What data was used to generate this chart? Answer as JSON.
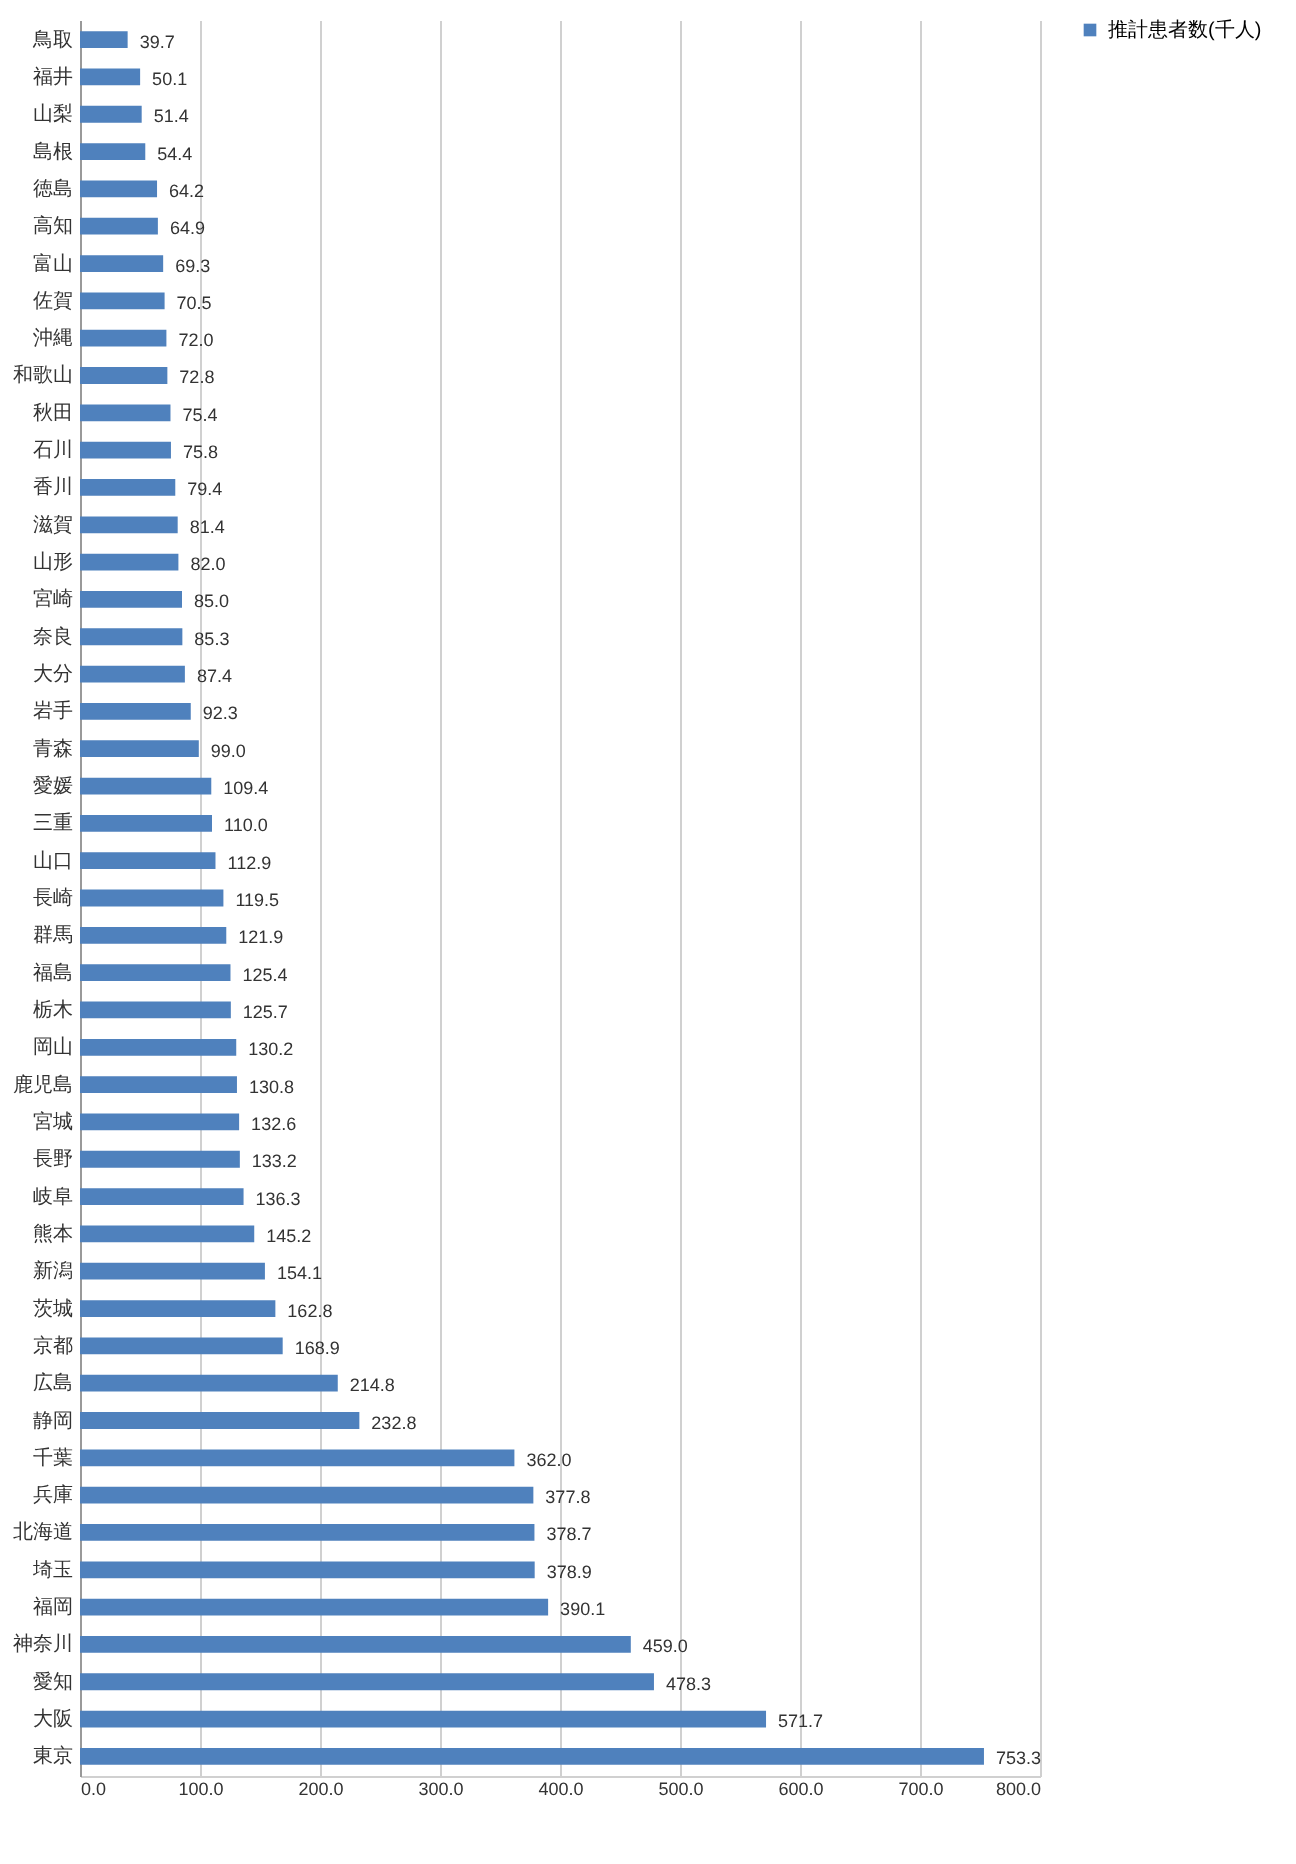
{
  "chart_data": {
    "type": "bar",
    "orientation": "horizontal",
    "categories": [
      "鳥取",
      "福井",
      "山梨",
      "島根",
      "徳島",
      "高知",
      "富山",
      "佐賀",
      "沖縄",
      "和歌山",
      "秋田",
      "石川",
      "香川",
      "滋賀",
      "山形",
      "宮崎",
      "奈良",
      "大分",
      "岩手",
      "青森",
      "愛媛",
      "三重",
      "山口",
      "長崎",
      "群馬",
      "福島",
      "栃木",
      "岡山",
      "鹿児島",
      "宮城",
      "長野",
      "岐阜",
      "熊本",
      "新潟",
      "茨城",
      "京都",
      "広島",
      "静岡",
      "千葉",
      "兵庫",
      "北海道",
      "埼玉",
      "福岡",
      "神奈川",
      "愛知",
      "大阪",
      "東京"
    ],
    "series": [
      {
        "name": "推計患者数(千人)",
        "color": "#4f81bd",
        "values": [
          39.7,
          50.1,
          51.4,
          54.4,
          64.2,
          64.9,
          69.3,
          70.5,
          72.0,
          72.8,
          75.4,
          75.8,
          79.4,
          81.4,
          82.0,
          85.0,
          85.3,
          87.4,
          92.3,
          99.0,
          109.4,
          110.0,
          112.9,
          119.5,
          121.9,
          125.4,
          125.7,
          130.2,
          130.8,
          132.6,
          133.2,
          136.3,
          145.2,
          154.1,
          162.8,
          168.9,
          214.8,
          232.8,
          362.0,
          377.8,
          378.7,
          378.9,
          390.1,
          459.0,
          478.3,
          571.7,
          753.3
        ],
        "value_labels": [
          "39.7",
          "50.1",
          "51.4",
          "54.4",
          "64.2",
          "64.9",
          "69.3",
          "70.5",
          "72.0",
          "72.8",
          "75.4",
          "75.8",
          "79.4",
          "81.4",
          "82.0",
          "85.0",
          "85.3",
          "87.4",
          "92.3",
          "99.0",
          "109.4",
          "110.0",
          "112.9",
          "119.5",
          "121.9",
          "125.4",
          "125.7",
          "130.2",
          "130.8",
          "132.6",
          "133.2",
          "136.3",
          "145.2",
          "154.1",
          "162.8",
          "168.9",
          "214.8",
          "232.8",
          "362.0",
          "377.8",
          "378.7",
          "378.9",
          "390.1",
          "459.0",
          "478.3",
          "571.7",
          "753.3"
        ]
      }
    ],
    "xlim": [
      0,
      800
    ],
    "xticks": [
      {
        "value": 0,
        "label": "0.0"
      },
      {
        "value": 100,
        "label": "100.0"
      },
      {
        "value": 200,
        "label": "200.0"
      },
      {
        "value": 300,
        "label": "300.0"
      },
      {
        "value": 400,
        "label": "400.0"
      },
      {
        "value": 500,
        "label": "500.0"
      },
      {
        "value": 600,
        "label": "600.0"
      },
      {
        "value": 700,
        "label": "700.0"
      },
      {
        "value": 800,
        "label": "800.0"
      }
    ],
    "grid": "x",
    "legend": "right"
  }
}
